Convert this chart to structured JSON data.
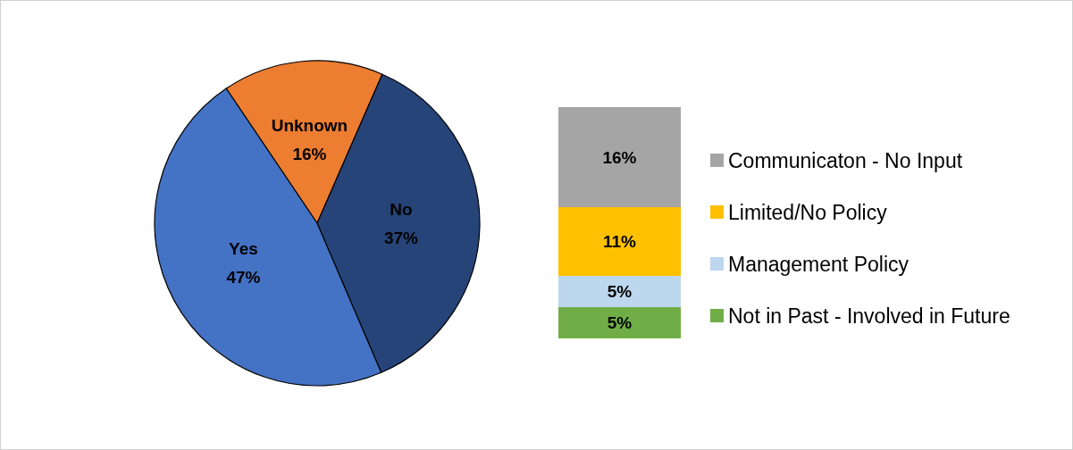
{
  "chart_data": [
    {
      "type": "pie",
      "categories": [
        "Unknown",
        "No",
        "Yes"
      ],
      "values": [
        16,
        37,
        47
      ],
      "colors": [
        "#ed7d31",
        "#264478",
        "#4472c4"
      ],
      "value_labels": [
        "16%",
        "37%",
        "47%"
      ]
    },
    {
      "type": "bar",
      "stacked": true,
      "categories": [
        null
      ],
      "legend": "right",
      "series": [
        {
          "name": "Not in Past - Involved in Future",
          "color": "#70ad47",
          "values": [
            5
          ],
          "value_labels": [
            "5%"
          ]
        },
        {
          "name": "Management Policy",
          "color": "#bdd7ee",
          "values": [
            5
          ],
          "value_labels": [
            "5%"
          ]
        },
        {
          "name": "Limited/No Policy",
          "color": "#ffc000",
          "values": [
            11
          ],
          "value_labels": [
            "11%"
          ]
        },
        {
          "name": "Communicaton - No Input",
          "color": "#a5a5a5",
          "values": [
            16
          ],
          "value_labels": [
            "16%"
          ]
        }
      ]
    }
  ]
}
